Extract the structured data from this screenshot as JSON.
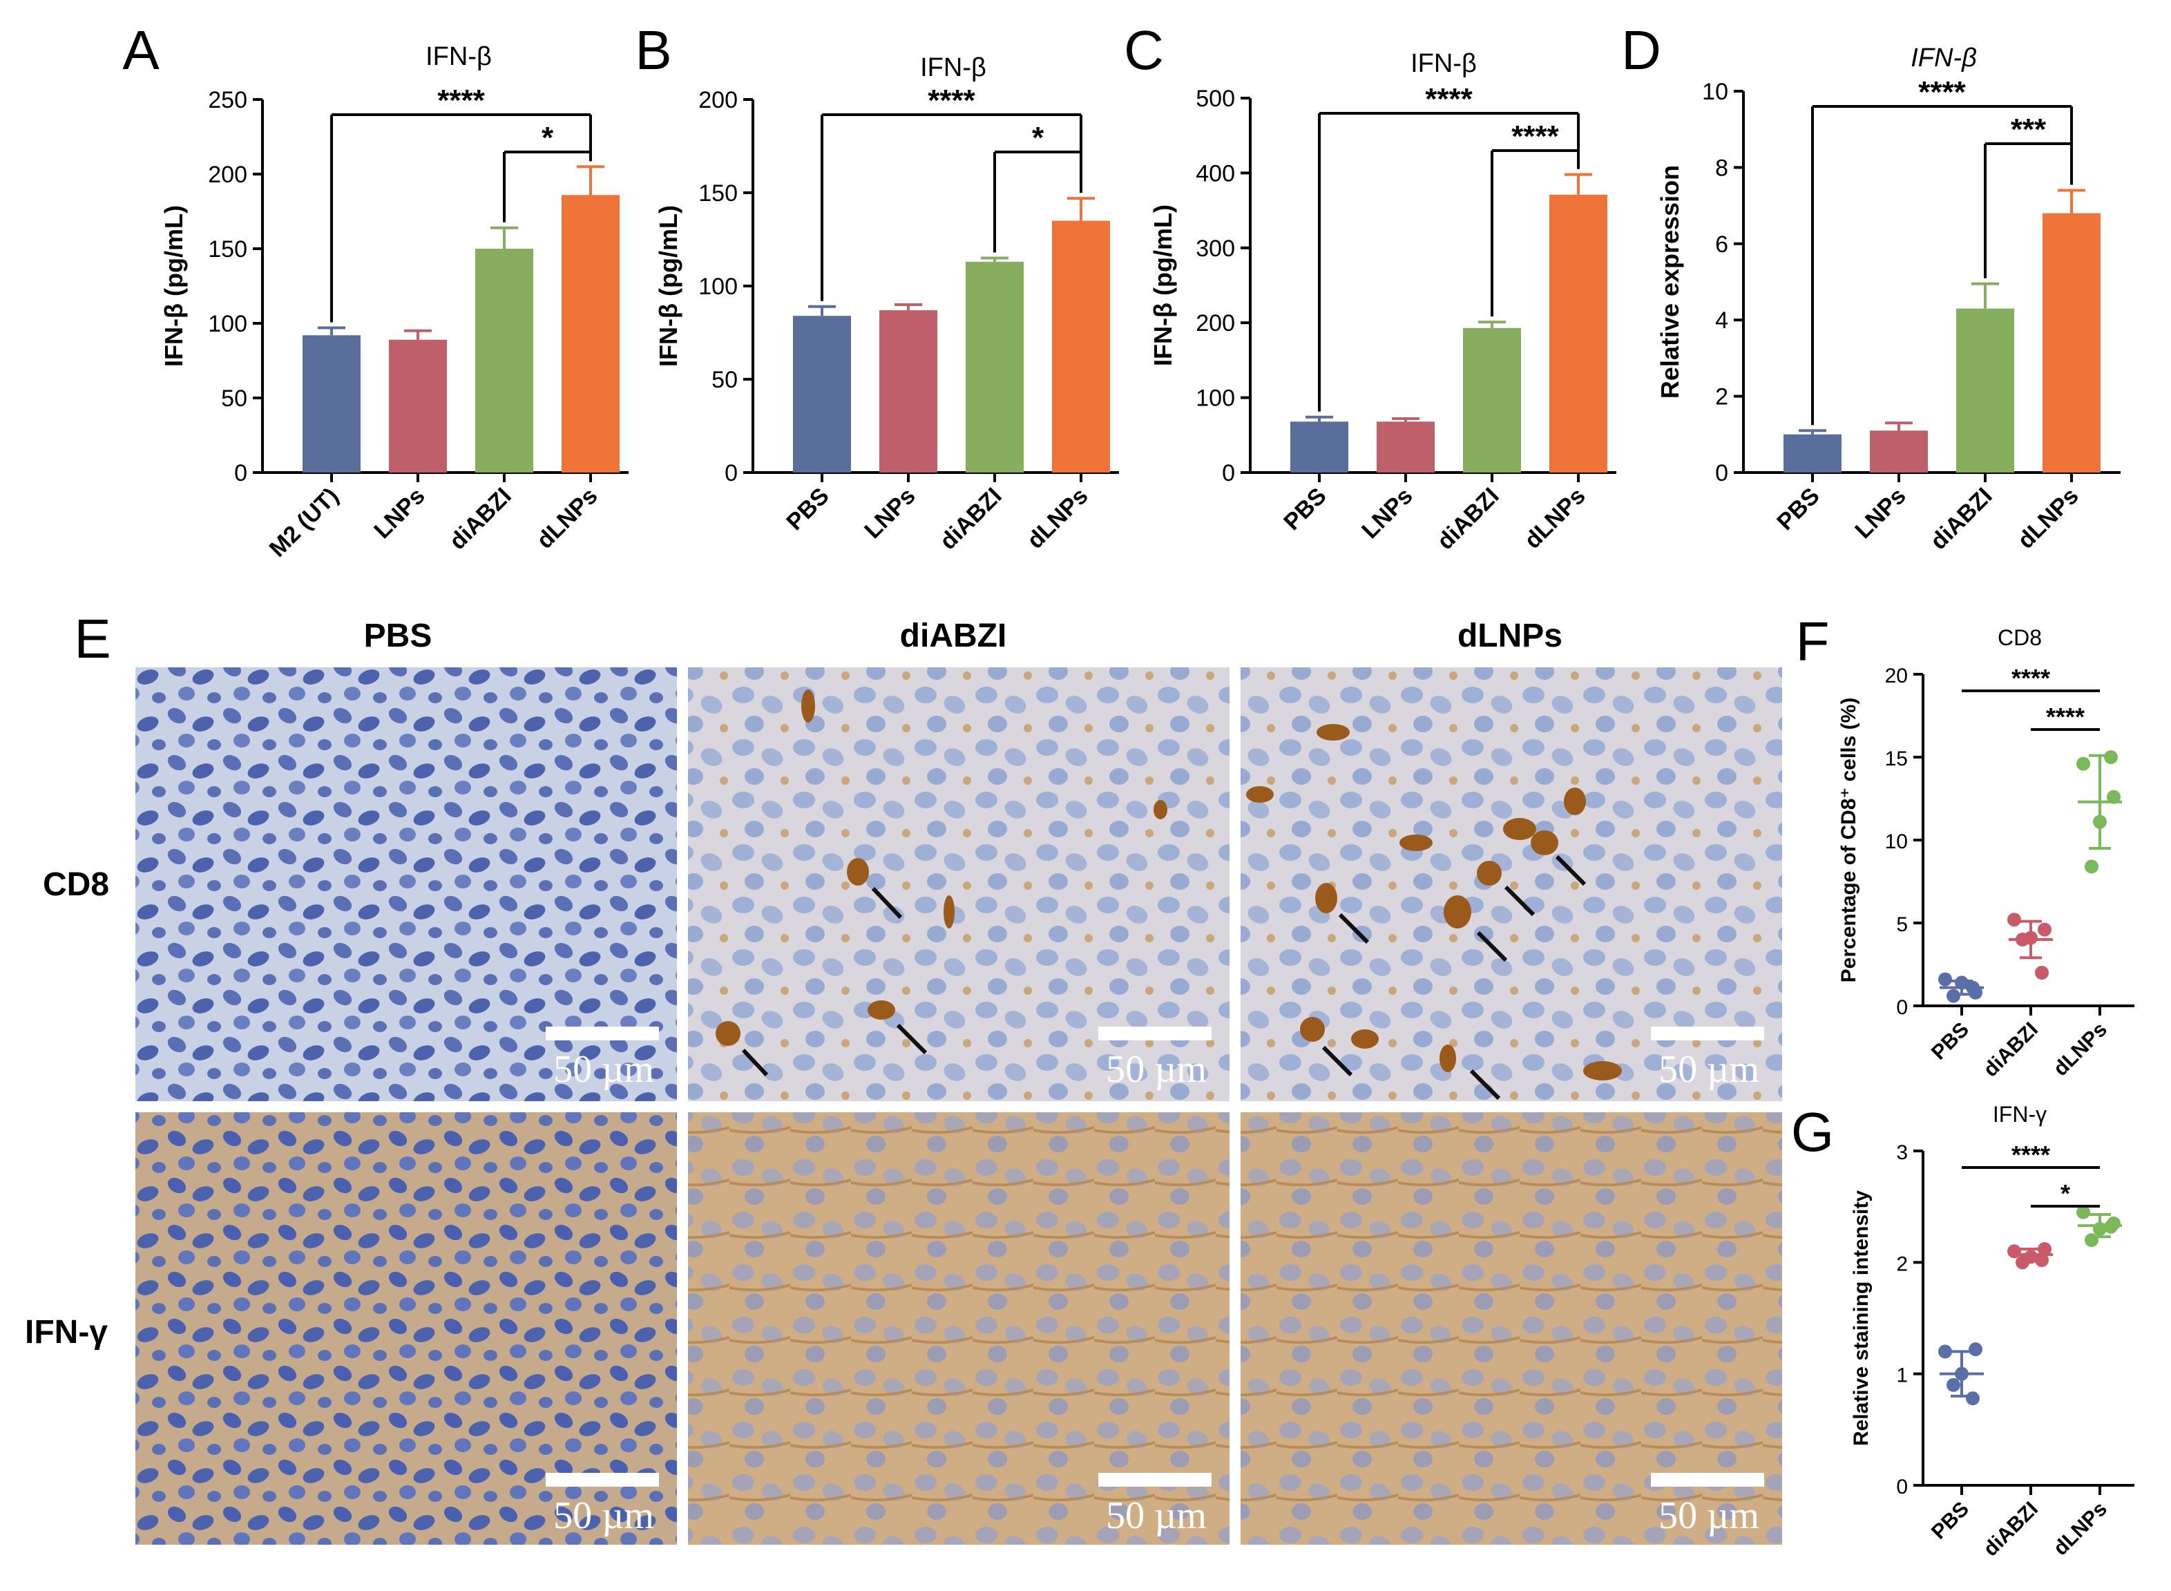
{
  "chart_data": [
    {
      "type": "bar",
      "panel": "A",
      "title": "IFN-β",
      "y_label": "IFN-β (pg/mL)",
      "categories": [
        "M2 (UT)",
        "LNPs",
        "diABZI",
        "dLNPs"
      ],
      "values": [
        92,
        89,
        150,
        186
      ],
      "errors": [
        5,
        6,
        14,
        19
      ],
      "colors": [
        "#5a6e9c",
        "#bf5f69",
        "#86ae5e",
        "#f0743a"
      ],
      "ylim": [
        0,
        250
      ],
      "yticks": [
        0,
        50,
        100,
        150,
        200,
        250
      ],
      "significance": [
        {
          "from": 0,
          "to": 3,
          "label": "****"
        },
        {
          "from": 2,
          "to": 3,
          "label": "*"
        }
      ]
    },
    {
      "type": "bar",
      "panel": "B",
      "title": "IFN-β",
      "y_label": "IFN-β (pg/mL)",
      "categories": [
        "PBS",
        "LNPs",
        "diABZI",
        "dLNPs"
      ],
      "values": [
        84,
        87,
        113,
        135
      ],
      "errors": [
        5,
        3,
        2,
        12
      ],
      "colors": [
        "#5a6e9c",
        "#bf5f69",
        "#86ae5e",
        "#f0743a"
      ],
      "ylim": [
        0,
        200
      ],
      "yticks": [
        0,
        50,
        100,
        150,
        200
      ],
      "significance": [
        {
          "from": 0,
          "to": 3,
          "label": "****"
        },
        {
          "from": 2,
          "to": 3,
          "label": "*"
        }
      ]
    },
    {
      "type": "bar",
      "panel": "C",
      "title": "IFN-β",
      "y_label": "IFN-β (pg/mL)",
      "categories": [
        "PBS",
        "LNPs",
        "diABZI",
        "dLNPs"
      ],
      "values": [
        68,
        68,
        193,
        371
      ],
      "errors": [
        6,
        4,
        8,
        27
      ],
      "colors": [
        "#5a6e9c",
        "#bf5f69",
        "#86ae5e",
        "#f0743a"
      ],
      "ylim": [
        0,
        500
      ],
      "yticks": [
        0,
        100,
        200,
        300,
        400,
        500
      ],
      "significance": [
        {
          "from": 0,
          "to": 3,
          "label": "****"
        },
        {
          "from": 2,
          "to": 3,
          "label": "****"
        }
      ]
    },
    {
      "type": "bar",
      "panel": "D",
      "title": "IFN-β",
      "title_italic": true,
      "y_label": "Relative expression",
      "categories": [
        "PBS",
        "LNPs",
        "diABZI",
        "dLNPs"
      ],
      "values": [
        1.0,
        1.1,
        4.3,
        6.8
      ],
      "errors": [
        0.1,
        0.2,
        0.65,
        0.6
      ],
      "colors": [
        "#5a6e9c",
        "#bf5f69",
        "#86ae5e",
        "#f0743a"
      ],
      "ylim": [
        0,
        10
      ],
      "yticks": [
        0,
        2,
        4,
        6,
        8,
        10
      ],
      "significance": [
        {
          "from": 0,
          "to": 3,
          "label": "****"
        },
        {
          "from": 2,
          "to": 3,
          "label": "***"
        }
      ]
    },
    {
      "type": "dot",
      "panel": "F",
      "title": "CD8",
      "y_label": "Percentage of CD8⁺ cells (%)",
      "categories": [
        "PBS",
        "diABZI",
        "dLNPs"
      ],
      "points": [
        [
          1.6,
          0.8,
          1.4,
          0.6,
          1.1
        ],
        [
          5.2,
          4.6,
          4.1,
          4.0,
          2.0
        ],
        [
          14.6,
          12.6,
          11.1,
          8.4,
          15.0
        ]
      ],
      "mean": [
        1.1,
        4.0,
        12.3
      ],
      "sd": [
        0.4,
        1.1,
        2.8
      ],
      "colors": [
        "#5a6ea8",
        "#c85a6a",
        "#7ab85a"
      ],
      "ylim": [
        0,
        20
      ],
      "yticks": [
        0,
        5,
        10,
        15,
        20
      ],
      "significance": [
        {
          "from": 0,
          "to": 2,
          "label": "****"
        },
        {
          "from": 1,
          "to": 2,
          "label": "****"
        }
      ]
    },
    {
      "type": "dot",
      "panel": "G",
      "title": "IFN-γ",
      "y_label": "Relative staining intensity",
      "categories": [
        "PBS",
        "diABZI",
        "dLNPs"
      ],
      "points": [
        [
          1.2,
          1.22,
          1.0,
          0.9,
          0.78
        ],
        [
          2.1,
          2.12,
          2.05,
          2.0,
          2.02
        ],
        [
          2.45,
          2.35,
          2.3,
          2.2,
          2.32
        ]
      ],
      "mean": [
        1.0,
        2.07,
        2.33
      ],
      "sd": [
        0.2,
        0.05,
        0.1
      ],
      "colors": [
        "#5a6ea8",
        "#c85a6a",
        "#7ab85a"
      ],
      "ylim": [
        0,
        3
      ],
      "yticks": [
        0,
        1,
        2,
        3
      ],
      "significance": [
        {
          "from": 0,
          "to": 2,
          "label": "****"
        },
        {
          "from": 1,
          "to": 2,
          "label": "*"
        }
      ]
    }
  ],
  "histology": {
    "panel": "E",
    "columns": [
      "PBS",
      "diABZI",
      "dLNPs"
    ],
    "rows": [
      "CD8",
      "IFN-γ"
    ],
    "scale_bar": "50 µm"
  }
}
